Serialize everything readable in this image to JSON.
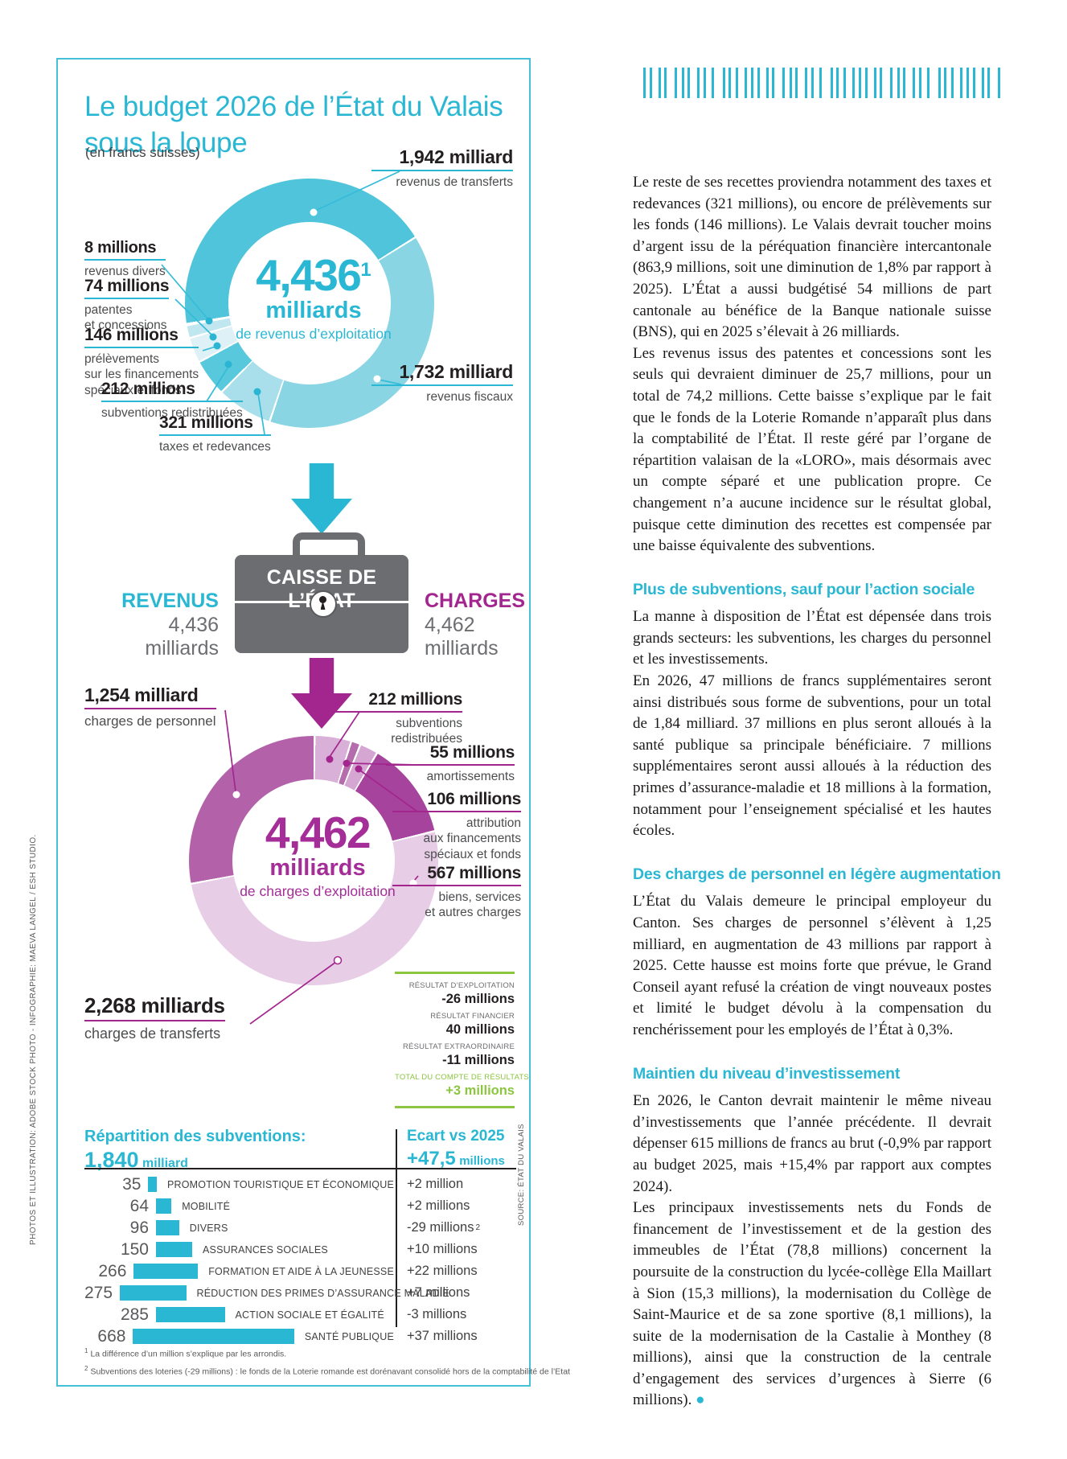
{
  "theme": {
    "cyan": "#29b7d3",
    "border_cyan": "#46c0d9",
    "magenta": "#a3268f",
    "magenta_text": "#a42d98",
    "green": "#8cc540",
    "case_gray": "#6c6d70"
  },
  "credits": {
    "left": "PHOTOS ET ILLUSTRATION: ADOBE STOCK PHOTO - INFOGRAPHIE: MAEVA LANGEL / ESH STUDIO."
  },
  "infographic": {
    "title": "Le budget 2026 de l’État du Valais sous la loupe",
    "subtitle": "(en francs suisses)",
    "source": "SOURCE: ÉTAT DU VALAIS",
    "revenue_donut": {
      "center_value": "4,436",
      "center_sup": "1",
      "center_unit": "milliards",
      "center_caption": "de revenus d’exploitation",
      "segments": [
        {
          "name": "revenus de transferts",
          "value": 1942,
          "value_label": "1,942 milliard",
          "sub": "revenus de transferts",
          "color": "#4fc4da"
        },
        {
          "name": "revenus fiscaux",
          "value": 1732,
          "value_label": "1,732 milliard",
          "sub": "revenus fiscaux",
          "color": "#8ad5e4"
        },
        {
          "name": "taxes et redevances",
          "value": 321,
          "value_label": "321 millions",
          "sub": "taxes et redevances",
          "color": "#a9dfeb"
        },
        {
          "name": "subventions redistribuées",
          "value": 212,
          "value_label": "212 millions",
          "sub": "subventions redistribuées",
          "color": "#58c8dc"
        },
        {
          "name": "prélèvements sur les financements spéciaux et fonds",
          "value": 146,
          "value_label": "146 millions",
          "sub": "prélèvements\nsur les financements\nspéciaux et fonds",
          "color": "#ddf1f7"
        },
        {
          "name": "patentes et concessions",
          "value": 74,
          "value_label": "74 millions",
          "sub": "patentes\net concessions",
          "color": "#c0e7f0"
        },
        {
          "name": "revenus divers",
          "value": 8,
          "value_label": "8 millions",
          "sub": "revenus divers",
          "color": "#eef8fb"
        }
      ]
    },
    "caisse": {
      "title": "CAISSE DE L’ÉTAT",
      "left_label": "REVENUS",
      "left_value": "4,436",
      "left_unit": "milliards",
      "right_label": "CHARGES",
      "right_value": "4,462",
      "right_unit": "milliards"
    },
    "charges_donut": {
      "center_value": "4,462",
      "center_unit": "milliards",
      "center_caption": "de charges d’exploitation",
      "segments": [
        {
          "name": "subventions redistribuées",
          "value": 212,
          "value_label": "212 millions",
          "sub": "subventions\nredistribuées",
          "color": "#d9b0d7"
        },
        {
          "name": "amortissements",
          "value": 55,
          "value_label": "55 millions",
          "sub": "amortissements",
          "color": "#b46cac"
        },
        {
          "name": "attribution aux financements spéciaux et fonds",
          "value": 106,
          "value_label": "106 millions",
          "sub": "attribution\naux financements\nspéciaux et fonds",
          "color": "#d5a6d2"
        },
        {
          "name": "biens, services et autres charges",
          "value": 567,
          "value_label": "567 millions",
          "sub": "biens, services\net autres charges",
          "color": "#a6439d"
        },
        {
          "name": "charges de transferts",
          "value": 2268,
          "value_label": "2,268 milliards",
          "sub": "charges de transferts",
          "color": "#e7cde6"
        },
        {
          "name": "charges de personnel",
          "value": 1254,
          "value_label": "1,254 milliard",
          "sub": "charges de personnel",
          "color": "#b362aa"
        }
      ]
    },
    "results": {
      "rows": [
        {
          "label": "RÉSULTAT D’EXPLOITATION",
          "value": "-26 millions",
          "highlight": false
        },
        {
          "label": "RÉSULTAT FINANCIER",
          "value": "40 millions",
          "highlight": false
        },
        {
          "label": "RÉSULTAT EXTRAORDINAIRE",
          "value": "-11 millions",
          "highlight": false
        },
        {
          "label": "TOTAL DU COMPTE DE RÉSULTATS",
          "value": "+3 millions",
          "highlight": true
        }
      ]
    },
    "subsidies": {
      "title": "Répartition des subventions:",
      "total_value": "1,840",
      "total_unit": "milliard",
      "ecart_title": "Ecart vs 2025",
      "ecart_value": "+47,5",
      "ecart_unit": "millions",
      "rows": [
        {
          "value": 35,
          "value_label": "35",
          "label": "PROMOTION TOURISTIQUE ET ÉCONOMIQUE",
          "ecart": "+2 million",
          "ecart_sup": ""
        },
        {
          "value": 64,
          "value_label": "64",
          "label": "MOBILITÉ",
          "ecart": "+2 millions",
          "ecart_sup": ""
        },
        {
          "value": 96,
          "value_label": "96",
          "label": "DIVERS",
          "ecart": "-29 millions",
          "ecart_sup": "2"
        },
        {
          "value": 150,
          "value_label": "150",
          "label": "ASSURANCES SOCIALES",
          "ecart": "+10 millions",
          "ecart_sup": ""
        },
        {
          "value": 266,
          "value_label": "266",
          "label": "FORMATION ET AIDE À LA JEUNESSE",
          "ecart": "+22 millions",
          "ecart_sup": ""
        },
        {
          "value": 275,
          "value_label": "275",
          "label": "RÉDUCTION DES PRIMES D’ASSURANCE MALADIE",
          "ecart": "+7 millions",
          "ecart_sup": ""
        },
        {
          "value": 285,
          "value_label": "285",
          "label": "ACTION SOCIALE ET ÉGALITÉ",
          "ecart": "-3 millions",
          "ecart_sup": ""
        },
        {
          "value": 668,
          "value_label": "668",
          "label": "SANTÉ PUBLIQUE",
          "ecart": "+37 millions",
          "ecart_sup": ""
        }
      ]
    },
    "footnotes": [
      {
        "mark": "1",
        "text": "La différence d’un million s’explique par les arrondis."
      },
      {
        "mark": "2",
        "text": "Subventions des loteries (-29 millions) : le fonds de la Loterie romande est dorénavant consolidé hors de la comptabilité de l’Etat"
      }
    ]
  },
  "article": {
    "end_mark": "●",
    "sections": [
      {
        "heading": "",
        "paragraphs": [
          "Le reste de ses recettes proviendra notamment des taxes et redevances (321 millions), ou encore de prélèvements sur les fonds (146 millions). Le Valais devrait toucher moins d’argent issu de la péréquation financière intercantonale (863,9 millions, soit une diminution de 1,8% par rapport à 2025). L’État a aussi budgétisé 54 millions de part cantonale au bénéfice de la Banque nationale suisse (BNS), qui en 2025 s’élevait à 26 milliards.",
          "Les revenus issus des patentes et concessions sont les seuls qui devraient diminuer de 25,7 millions, pour un total de 74,2 millions. Cette baisse s’explique par le fait que le fonds de la Loterie Romande n’apparaît plus dans la comptabilité de l’État. Il reste géré par l’organe de répartition valaisan de la «LORO», mais désormais avec un compte séparé et une publication propre. Ce changement n’a aucune incidence sur le résultat global, puisque cette diminution des recettes est compensée par une baisse équivalente des subventions."
        ]
      },
      {
        "heading": "Plus de subventions, sauf pour l’action sociale",
        "paragraphs": [
          "La manne à disposition de l’État est dépensée dans trois grands secteurs: les subventions, les charges du personnel et les investissements.",
          "En 2026, 47 millions de francs supplémentaires seront ainsi distribués sous forme de subventions, pour un total de 1,84 milliard. 37 millions en plus seront alloués à la santé publique sa principale bénéficiaire. 7 millions supplémentaires seront aussi alloués à la réduction des primes d’assurance-maladie et 18 millions à la formation, notamment pour l’enseignement spécialisé et les hautes écoles."
        ]
      },
      {
        "heading": "Des charges de personnel en légère augmentation",
        "paragraphs": [
          "L’État du Valais demeure le principal employeur du Canton. Ses charges de personnel s’élèvent à 1,25 milliard, en augmentation de 43 millions par rapport à 2025. Cette hausse est moins forte que prévue, le Grand Conseil ayant refusé la création de vingt nouveaux postes et limité le budget dévolu à la compensation du renchérissement pour les employés de l’État à 0,3%."
        ]
      },
      {
        "heading": "Maintien du niveau d’investissement",
        "paragraphs": [
          "En 2026, le Canton devrait maintenir le même niveau d’investissements que l’année précédente. Il devrait dépenser 615 millions de francs au brut (-0,9% par rapport au budget 2025, mais +15,4% par rapport aux comptes 2024).",
          "Les principaux investissements nets du Fonds de financement de l’investissement et de la gestion des immeubles de l’État (78,8 millions) concernent la poursuite de la construction du lycée-collège Ella Maillart à Sion (15,3 millions), la modernisation du Collège de Saint-Maurice et de sa zone sportive (8,1 millions), la suite de la modernisation de la Castalie à Monthey (8 millions), ainsi que la construction de la centrale d’engagement des services d’urgences à Sierre (6 millions)."
        ]
      }
    ]
  },
  "chart_data": [
    {
      "type": "pie",
      "title": "4,436 milliards de revenus d’exploitation (en francs suisses)",
      "categories": [
        "revenus de transferts",
        "revenus fiscaux",
        "taxes et redevances",
        "subventions redistribuées",
        "prélèvements sur les financements spéciaux et fonds",
        "patentes et concessions",
        "revenus divers"
      ],
      "values": [
        1942,
        1732,
        321,
        212,
        146,
        74,
        8
      ],
      "unit": "millions CHF"
    },
    {
      "type": "pie",
      "title": "4,462 milliards de charges d’exploitation (en francs suisses)",
      "categories": [
        "charges de transferts",
        "charges de personnel",
        "biens, services et autres charges",
        "subventions redistribuées",
        "attribution aux financements spéciaux et fonds",
        "amortissements"
      ],
      "values": [
        2268,
        1254,
        567,
        212,
        106,
        55
      ],
      "unit": "millions CHF"
    },
    {
      "type": "table",
      "title": "Compte de résultats",
      "rows": [
        [
          "RÉSULTAT D’EXPLOITATION",
          "-26 millions"
        ],
        [
          "RÉSULTAT FINANCIER",
          "40 millions"
        ],
        [
          "RÉSULTAT EXTRAORDINAIRE",
          "-11 millions"
        ],
        [
          "TOTAL DU COMPTE DE RÉSULTATS",
          "+3 millions"
        ]
      ]
    },
    {
      "type": "bar",
      "title": "Répartition des subventions: 1,840 milliard",
      "categories": [
        "PROMOTION TOURISTIQUE ET ÉCONOMIQUE",
        "MOBILITÉ",
        "DIVERS",
        "ASSURANCES SOCIALES",
        "FORMATION ET AIDE À LA JEUNESSE",
        "RÉDUCTION DES PRIMES D’ASSURANCE MALADIE",
        "ACTION SOCIALE ET ÉGALITÉ",
        "SANTÉ PUBLIQUE"
      ],
      "values": [
        35,
        64,
        96,
        150,
        266,
        275,
        285,
        668
      ],
      "series": [
        {
          "name": "Ecart vs 2025 (+47,5 millions)",
          "values": [
            "+2 million",
            "+2 millions",
            "-29 millions",
            "+10 millions",
            "+22 millions",
            "+7 millions",
            "-3 millions",
            "+37 millions"
          ]
        }
      ],
      "xlabel": "",
      "ylabel": "millions CHF",
      "legend": false,
      "grid": false
    }
  ]
}
